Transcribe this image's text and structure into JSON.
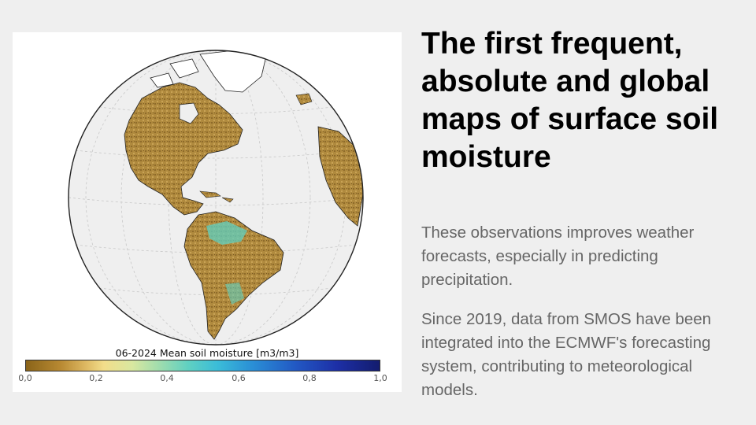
{
  "headline": "The first frequent, absolute and global maps of surface soil moisture",
  "paragraphs": [
    "These observations improves weather forecasts, especially in predicting precipitation.",
    "Since 2019, data from SMOS have been integrated into the ECMWF's forecasting system, contributing to meteorological models."
  ],
  "map": {
    "colorbar_title": "06-2024 Mean soil moisture [m3/m3]",
    "colorbar_ticks": [
      "0,0",
      "0,2",
      "0,4",
      "0,6",
      "0,8",
      "1,0"
    ],
    "colors": {
      "ocean": "#efefef",
      "dry_soil": "#b08a3e",
      "moist_soil": "#5fd0c2",
      "ice": "#ffffff",
      "page_background": "#efefef",
      "panel_background": "#ffffff"
    }
  }
}
